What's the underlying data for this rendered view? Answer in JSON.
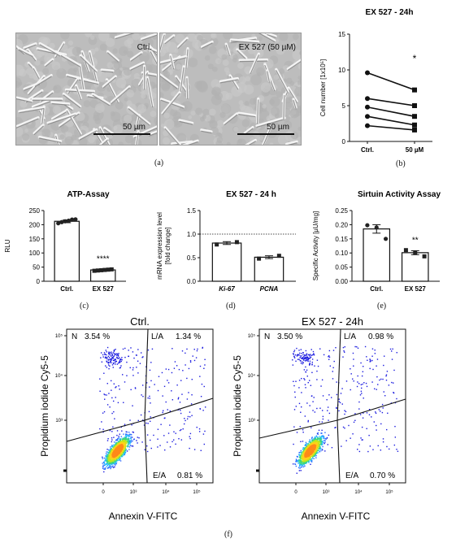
{
  "panel_letters": {
    "a": "(a)",
    "b": "(b)",
    "c": "(c)",
    "d": "(d)",
    "e": "(e)",
    "f": "(f)"
  },
  "micrographs": [
    {
      "label": "Ctrl.",
      "scale_label": "50 µm"
    },
    {
      "label": "EX 527 (50 µM)",
      "scale_label": "50 µm"
    }
  ],
  "chart_data": [
    {
      "id": "b",
      "type": "line",
      "title": "EX 527 - 24h",
      "ylabel": "Cell number [1x10⁵]",
      "categories": [
        "Ctrl.",
        "50 µM"
      ],
      "ylim": [
        0,
        15
      ],
      "yticks": [
        0,
        5,
        10,
        15
      ],
      "series": [
        {
          "values": [
            9.6,
            7.2
          ]
        },
        {
          "values": [
            6.0,
            5.0
          ]
        },
        {
          "values": [
            4.8,
            3.5
          ]
        },
        {
          "values": [
            3.5,
            2.3
          ]
        },
        {
          "values": [
            2.2,
            1.6
          ]
        }
      ],
      "significance": "*"
    },
    {
      "id": "c",
      "type": "bar",
      "title": "ATP-Assay",
      "ylabel": "RLU",
      "categories": [
        "Ctrl.",
        "EX 527"
      ],
      "values": [
        212,
        40
      ],
      "errors": [
        5,
        2
      ],
      "points": [
        [
          205,
          209,
          212,
          214,
          218,
          219
        ],
        [
          37,
          38,
          39,
          40,
          41,
          42
        ]
      ],
      "ylim": [
        0,
        250
      ],
      "yticks": [
        0,
        50,
        100,
        150,
        200,
        250
      ],
      "significance": "****"
    },
    {
      "id": "d",
      "type": "bar",
      "title": "EX 527 - 24 h",
      "ylabel": "mRNA expression level",
      "ylabel2": "[fold change]",
      "categories": [
        "Ki-67",
        "PCNA"
      ],
      "values": [
        0.81,
        0.51
      ],
      "errors": [
        0.03,
        0.03
      ],
      "points": [
        [
          0.78,
          0.83
        ],
        [
          0.48,
          0.54
        ]
      ],
      "ylim": [
        0,
        1.5
      ],
      "yticks": [
        0.0,
        0.5,
        1.0,
        1.5
      ],
      "reference_line": 1.0
    },
    {
      "id": "e",
      "type": "bar",
      "title": "Sirtuin Activity Assay",
      "ylabel": "Specific Activity [µU/mg]",
      "categories": [
        "Ctrl.",
        "EX 527"
      ],
      "values": [
        0.185,
        0.101
      ],
      "errors": [
        0.015,
        0.007
      ],
      "points": [
        [
          0.198,
          0.19,
          0.15
        ],
        [
          0.11,
          0.1,
          0.088
        ]
      ],
      "ylim": [
        0,
        0.25
      ],
      "yticks": [
        0.0,
        0.05,
        0.1,
        0.15,
        0.2,
        0.25
      ],
      "significance": "**"
    },
    {
      "id": "f1",
      "type": "scatter",
      "title": "Ctrl.",
      "xlabel": "Annexin V-FITC",
      "ylabel": "Propidium iodide Cy5-5",
      "quadrants": {
        "N": "3.54 %",
        "L/A": "1.34 %",
        "E/A": "0.81 %"
      },
      "quadrant_names": {
        "N": "N",
        "L/A": "L/A",
        "E/A": "E/A"
      },
      "xticks": [
        "0",
        "10³",
        "10⁴",
        "10⁵"
      ],
      "yticks": [
        "10³",
        "10⁴",
        "10⁵"
      ]
    },
    {
      "id": "f2",
      "type": "scatter",
      "title": "EX 527 - 24h",
      "xlabel": "Annexin V-FITC",
      "ylabel": "Propidium iodide Cy5-5",
      "quadrants": {
        "N": "3.50 %",
        "L/A": "0.98 %",
        "E/A": "0.70 %"
      },
      "quadrant_names": {
        "N": "N",
        "L/A": "L/A",
        "E/A": "E/A"
      },
      "xticks": [
        "0",
        "10³",
        "10⁴",
        "10⁵"
      ],
      "yticks": [
        "10³",
        "10⁴",
        "10⁵"
      ]
    }
  ]
}
